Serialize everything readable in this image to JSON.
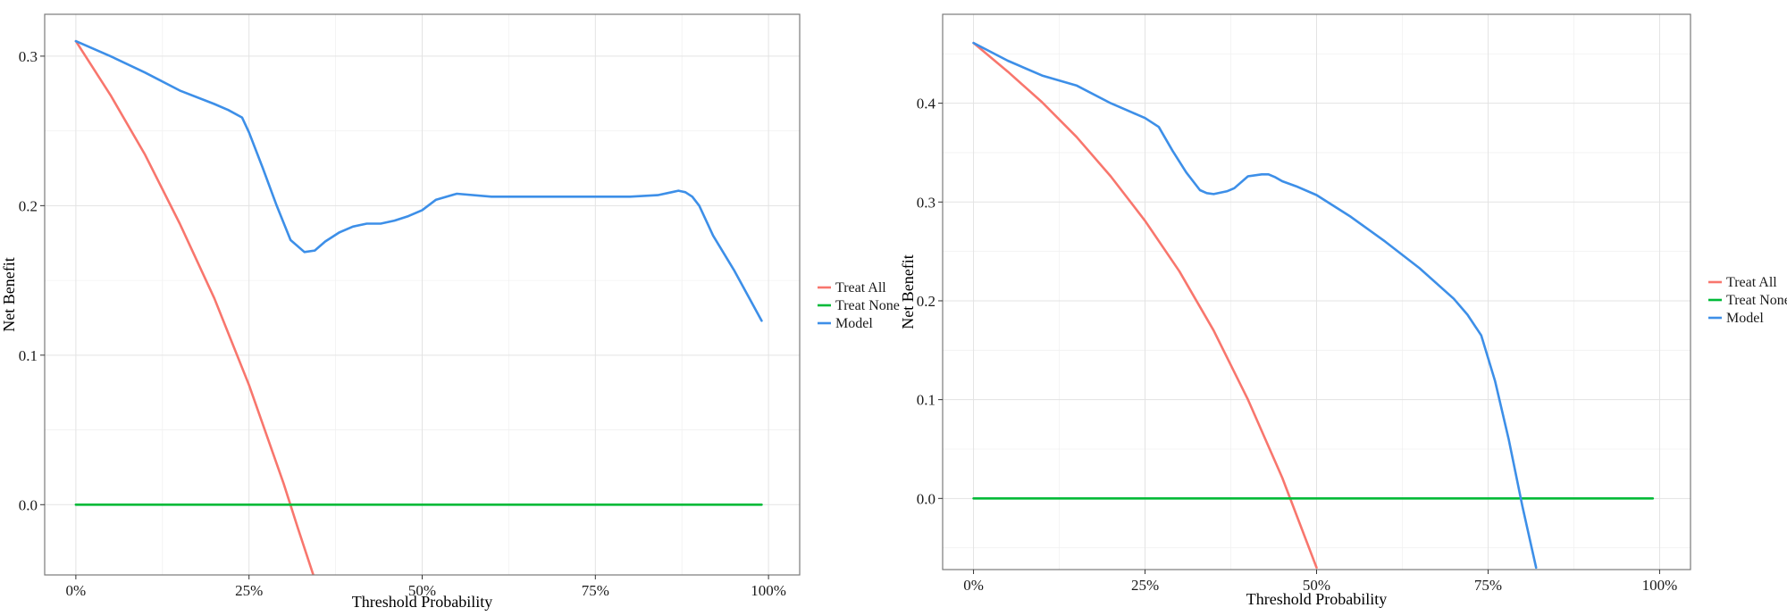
{
  "chart_data": [
    {
      "type": "line",
      "xlabel": "Threshold Probability",
      "ylabel": "Net Benefit",
      "xlim": [
        -0.045,
        1.045
      ],
      "ylim": [
        -0.047,
        0.328
      ],
      "x_ticks": [
        0,
        0.25,
        0.5,
        0.75,
        1.0
      ],
      "x_tick_labels": [
        "0%",
        "25%",
        "50%",
        "75%",
        "100%"
      ],
      "y_ticks": [
        0.0,
        0.1,
        0.2,
        0.3
      ],
      "y_tick_labels": [
        "0.0",
        "0.1",
        "0.2",
        "0.3"
      ],
      "grid": true,
      "legend_position": "right",
      "series": [
        {
          "name": "Treat All",
          "color": "#F8766D",
          "x": [
            0,
            0.05,
            0.1,
            0.15,
            0.2,
            0.25,
            0.3,
            0.32,
            0.345
          ],
          "y": [
            0.31,
            0.274,
            0.234,
            0.188,
            0.138,
            0.08,
            0.014,
            -0.015,
            -0.05
          ]
        },
        {
          "name": "Treat None",
          "color": "#00BA38",
          "x": [
            0,
            0.99
          ],
          "y": [
            0,
            0
          ]
        },
        {
          "name": "Model",
          "color": "#3D8FE8",
          "x": [
            0,
            0.05,
            0.1,
            0.15,
            0.2,
            0.22,
            0.24,
            0.25,
            0.27,
            0.29,
            0.31,
            0.33,
            0.345,
            0.36,
            0.38,
            0.4,
            0.42,
            0.44,
            0.46,
            0.48,
            0.5,
            0.52,
            0.55,
            0.6,
            0.65,
            0.7,
            0.75,
            0.8,
            0.84,
            0.86,
            0.87,
            0.88,
            0.89,
            0.9,
            0.92,
            0.95,
            0.99
          ],
          "y": [
            0.31,
            0.3,
            0.289,
            0.277,
            0.268,
            0.264,
            0.259,
            0.249,
            0.225,
            0.2,
            0.177,
            0.169,
            0.17,
            0.176,
            0.182,
            0.186,
            0.188,
            0.188,
            0.19,
            0.193,
            0.197,
            0.204,
            0.208,
            0.206,
            0.206,
            0.206,
            0.206,
            0.206,
            0.207,
            0.209,
            0.21,
            0.209,
            0.206,
            0.2,
            0.18,
            0.157,
            0.123
          ]
        }
      ]
    },
    {
      "type": "line",
      "xlabel": "Threshold Probability",
      "ylabel": "Net Benefit",
      "xlim": [
        -0.045,
        1.045
      ],
      "ylim": [
        -0.072,
        0.49
      ],
      "x_ticks": [
        0,
        0.25,
        0.5,
        0.75,
        1.0
      ],
      "x_tick_labels": [
        "0%",
        "25%",
        "50%",
        "75%",
        "100%"
      ],
      "y_ticks": [
        0.0,
        0.1,
        0.2,
        0.3,
        0.4
      ],
      "y_tick_labels": [
        "0.0",
        "0.1",
        "0.2",
        "0.3",
        "0.4"
      ],
      "grid": true,
      "legend_position": "right",
      "series": [
        {
          "name": "Treat All",
          "color": "#F8766D",
          "x": [
            0,
            0.05,
            0.1,
            0.15,
            0.2,
            0.25,
            0.3,
            0.35,
            0.4,
            0.45,
            0.5
          ],
          "y": [
            0.461,
            0.432,
            0.401,
            0.366,
            0.326,
            0.281,
            0.23,
            0.17,
            0.1,
            0.021,
            -0.07
          ]
        },
        {
          "name": "Treat None",
          "color": "#00BA38",
          "x": [
            0,
            0.99
          ],
          "y": [
            0,
            0
          ]
        },
        {
          "name": "Model",
          "color": "#3D8FE8",
          "x": [
            0,
            0.05,
            0.1,
            0.15,
            0.2,
            0.25,
            0.27,
            0.29,
            0.31,
            0.33,
            0.34,
            0.35,
            0.37,
            0.38,
            0.4,
            0.42,
            0.43,
            0.44,
            0.45,
            0.47,
            0.5,
            0.55,
            0.6,
            0.65,
            0.7,
            0.72,
            0.74,
            0.76,
            0.78,
            0.8,
            0.82
          ],
          "y": [
            0.461,
            0.443,
            0.428,
            0.418,
            0.4,
            0.385,
            0.376,
            0.352,
            0.33,
            0.312,
            0.309,
            0.308,
            0.311,
            0.314,
            0.326,
            0.328,
            0.328,
            0.325,
            0.321,
            0.316,
            0.307,
            0.285,
            0.26,
            0.233,
            0.202,
            0.186,
            0.165,
            0.119,
            0.06,
            -0.008,
            -0.07
          ]
        }
      ]
    }
  ]
}
